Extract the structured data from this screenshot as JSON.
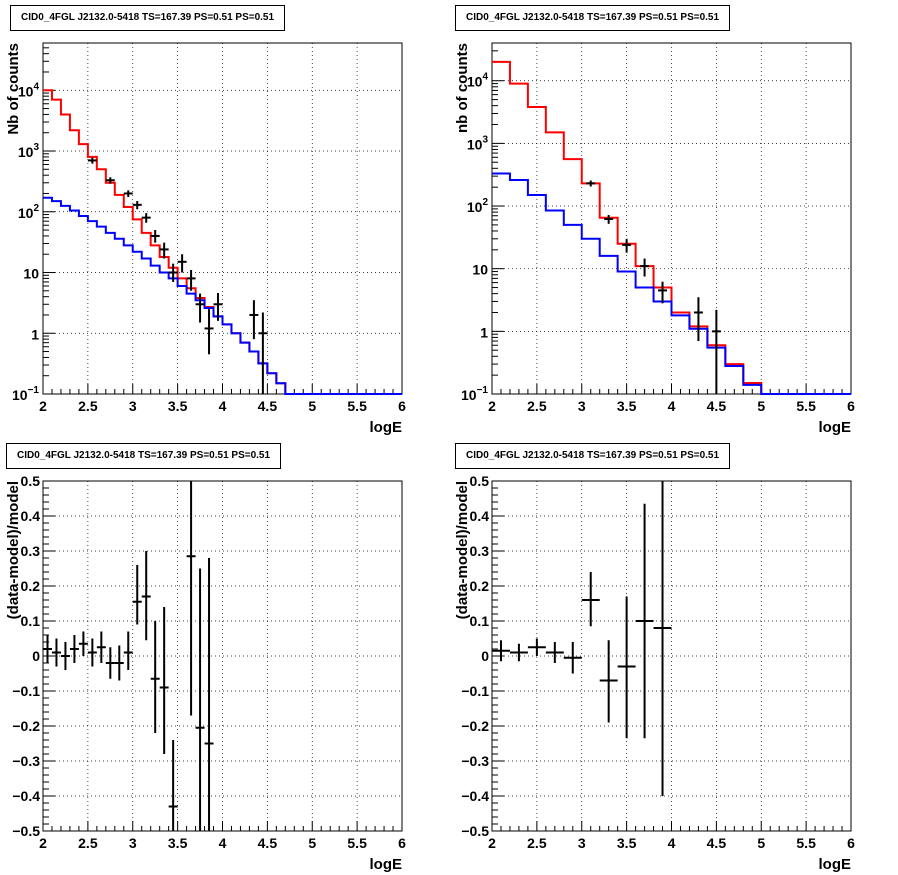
{
  "chart_data": [
    {
      "type": "line",
      "title": "CID0_4FGL J2132.0-5418 TS=167.39 PS=0.51 PS=0.51",
      "xlabel": "logE",
      "ylabel": "Nb of counts",
      "log_y": true,
      "xlim": [
        2,
        6
      ],
      "ylim": [
        0.1,
        60000
      ],
      "grid": true,
      "x_ticks": [
        "2",
        "2.5",
        "3",
        "3.5",
        "4",
        "4.5",
        "5",
        "5.5",
        "6"
      ],
      "y_ticks": [
        {
          "value": 0.1,
          "base": "10",
          "exp": "−1",
          "label": ""
        },
        {
          "value": 1,
          "base": "",
          "exp": "",
          "label": "1"
        },
        {
          "value": 10,
          "base": "",
          "exp": "",
          "label": "10"
        },
        {
          "value": 100,
          "base": "10",
          "exp": "2",
          "label": ""
        },
        {
          "value": 1000,
          "base": "10",
          "exp": "3",
          "label": ""
        },
        {
          "value": 10000,
          "base": "10",
          "exp": "4",
          "label": ""
        }
      ],
      "bin_edges": [
        2.0,
        2.1,
        2.2,
        2.3,
        2.4,
        2.5,
        2.6,
        2.7,
        2.8,
        2.9,
        3.0,
        3.1,
        3.2,
        3.3,
        3.4,
        3.5,
        3.6,
        3.7,
        3.8,
        3.9,
        4.0,
        4.1,
        4.2,
        4.3,
        4.4,
        4.5,
        4.6,
        4.7,
        4.8,
        4.9,
        5.0,
        5.1,
        5.2,
        5.3,
        5.4,
        5.5,
        5.6,
        5.7,
        5.8,
        5.9,
        6.0
      ],
      "series": [
        {
          "color": "#ff0000",
          "values": [
            10000,
            7000,
            4000,
            2200,
            1300,
            800,
            500,
            300,
            190,
            120,
            75,
            45,
            28,
            18,
            12,
            8,
            5.5,
            3.8,
            2.7,
            1.9,
            1.4,
            1.0,
            0.7,
            0.5,
            0.32,
            0.22,
            0.15,
            0.1,
            0.1,
            0.1,
            0.1,
            0.1,
            0.1,
            0.1,
            0.1,
            0.1,
            0.1,
            0.1,
            0.1,
            0.1
          ]
        },
        {
          "color": "#0000ff",
          "values": [
            170,
            150,
            125,
            105,
            85,
            70,
            57,
            45,
            36,
            28,
            22,
            17,
            13,
            10,
            8,
            6,
            4.5,
            3.5,
            2.6,
            1.9,
            1.4,
            1.0,
            0.7,
            0.5,
            0.32,
            0.22,
            0.15,
            0.1,
            0.1,
            0.1,
            0.1,
            0.1,
            0.1,
            0.1,
            0.1,
            0.1,
            0.1,
            0.1,
            0.1,
            0.1
          ]
        }
      ],
      "points": [
        {
          "x": 2.55,
          "y": 700,
          "ylo": 620,
          "yhi": 780
        },
        {
          "x": 2.75,
          "y": 330,
          "ylo": 290,
          "yhi": 370
        },
        {
          "x": 2.95,
          "y": 200,
          "ylo": 175,
          "yhi": 225
        },
        {
          "x": 3.05,
          "y": 130,
          "ylo": 110,
          "yhi": 150
        },
        {
          "x": 3.15,
          "y": 80,
          "ylo": 66,
          "yhi": 95
        },
        {
          "x": 3.25,
          "y": 40,
          "ylo": 31,
          "yhi": 50
        },
        {
          "x": 3.35,
          "y": 24,
          "ylo": 17,
          "yhi": 31
        },
        {
          "x": 3.45,
          "y": 10,
          "ylo": 7,
          "yhi": 14
        },
        {
          "x": 3.55,
          "y": 15,
          "ylo": 10,
          "yhi": 20
        },
        {
          "x": 3.65,
          "y": 8,
          "ylo": 5,
          "yhi": 11
        },
        {
          "x": 3.75,
          "y": 3,
          "ylo": 1.5,
          "yhi": 4.5
        },
        {
          "x": 3.85,
          "y": 1.2,
          "ylo": 0.45,
          "yhi": 2.5
        },
        {
          "x": 3.95,
          "y": 3,
          "ylo": 1.6,
          "yhi": 4.6
        },
        {
          "x": 4.35,
          "y": 2,
          "ylo": 0.8,
          "yhi": 3.5
        },
        {
          "x": 4.45,
          "y": 1,
          "ylo": 0.1,
          "yhi": 2.2
        }
      ]
    },
    {
      "type": "line",
      "title": "CID0_4FGL J2132.0-5418 TS=167.39 PS=0.51 PS=0.51",
      "xlabel": "logE",
      "ylabel": "nb of counts",
      "log_y": true,
      "xlim": [
        2,
        6
      ],
      "ylim": [
        0.1,
        40000
      ],
      "grid": true,
      "x_ticks": [
        "2",
        "2.5",
        "3",
        "3.5",
        "4",
        "4.5",
        "5",
        "5.5",
        "6"
      ],
      "y_ticks": [
        {
          "value": 0.1,
          "base": "10",
          "exp": "−1",
          "label": ""
        },
        {
          "value": 1,
          "base": "",
          "exp": "",
          "label": "1"
        },
        {
          "value": 10,
          "base": "",
          "exp": "",
          "label": "10"
        },
        {
          "value": 100,
          "base": "10",
          "exp": "2",
          "label": ""
        },
        {
          "value": 1000,
          "base": "10",
          "exp": "3",
          "label": ""
        },
        {
          "value": 10000,
          "base": "10",
          "exp": "4",
          "label": ""
        }
      ],
      "bin_edges": [
        2.0,
        2.2,
        2.4,
        2.6,
        2.8,
        3.0,
        3.2,
        3.4,
        3.6,
        3.8,
        4.0,
        4.2,
        4.4,
        4.6,
        4.8,
        5.0,
        5.2,
        5.4,
        5.6,
        5.8,
        6.0
      ],
      "series": [
        {
          "color": "#ff0000",
          "values": [
            20000,
            9000,
            3800,
            1500,
            560,
            230,
            65,
            25,
            11,
            5,
            2,
            1.2,
            0.6,
            0.3,
            0.15,
            0.1,
            0.1,
            0.1,
            0.1,
            0.1
          ]
        },
        {
          "color": "#0000ff",
          "values": [
            330,
            260,
            150,
            85,
            50,
            30,
            16,
            9,
            5,
            3,
            1.8,
            1.1,
            0.55,
            0.28,
            0.14,
            0.1,
            0.1,
            0.1,
            0.1,
            0.1
          ]
        }
      ],
      "points": [
        {
          "x": 3.1,
          "y": 230,
          "ylo": 205,
          "yhi": 255
        },
        {
          "x": 3.3,
          "y": 62,
          "ylo": 52,
          "yhi": 72
        },
        {
          "x": 3.5,
          "y": 24,
          "ylo": 18,
          "yhi": 30
        },
        {
          "x": 3.7,
          "y": 11,
          "ylo": 7.5,
          "yhi": 14.5
        },
        {
          "x": 3.9,
          "y": 4.5,
          "ylo": 2.8,
          "yhi": 6.2
        },
        {
          "x": 4.3,
          "y": 2,
          "ylo": 0.7,
          "yhi": 3.5
        },
        {
          "x": 4.5,
          "y": 1,
          "ylo": 0.1,
          "yhi": 2.2
        }
      ]
    },
    {
      "type": "scatter",
      "title": "CID0_4FGL J2132.0-5418 TS=167.39 PS=0.51 PS=0.51",
      "xlabel": "logE",
      "ylabel": "(data-model)/model",
      "log_y": false,
      "xlim": [
        2,
        6
      ],
      "ylim": [
        -0.5,
        0.5
      ],
      "grid": true,
      "x_ticks": [
        "2",
        "2.5",
        "3",
        "3.5",
        "4",
        "4.5",
        "5",
        "5.5",
        "6"
      ],
      "y_ticks": [
        {
          "value": -0.5,
          "label": "−0.5"
        },
        {
          "value": -0.4,
          "label": "−0.4"
        },
        {
          "value": -0.3,
          "label": "−0.3"
        },
        {
          "value": -0.2,
          "label": "−0.2"
        },
        {
          "value": -0.1,
          "label": "−0.1"
        },
        {
          "value": 0,
          "label": "0"
        },
        {
          "value": 0.1,
          "label": "0.1"
        },
        {
          "value": 0.2,
          "label": "0.2"
        },
        {
          "value": 0.3,
          "label": "0.3"
        },
        {
          "value": 0.4,
          "label": "0.4"
        },
        {
          "value": 0.5,
          "label": "0.5"
        }
      ],
      "bin_width": 0.1,
      "points": [
        {
          "x": 2.05,
          "y": 0.02,
          "ylo": -0.02,
          "yhi": 0.06
        },
        {
          "x": 2.15,
          "y": 0.01,
          "ylo": -0.03,
          "yhi": 0.05
        },
        {
          "x": 2.25,
          "y": 0.0,
          "ylo": -0.04,
          "yhi": 0.04
        },
        {
          "x": 2.35,
          "y": 0.02,
          "ylo": -0.02,
          "yhi": 0.06
        },
        {
          "x": 2.45,
          "y": 0.035,
          "ylo": 0.0,
          "yhi": 0.07
        },
        {
          "x": 2.55,
          "y": 0.01,
          "ylo": -0.03,
          "yhi": 0.05
        },
        {
          "x": 2.65,
          "y": 0.025,
          "ylo": -0.02,
          "yhi": 0.07
        },
        {
          "x": 2.75,
          "y": -0.02,
          "ylo": -0.065,
          "yhi": 0.025
        },
        {
          "x": 2.85,
          "y": -0.02,
          "ylo": -0.07,
          "yhi": 0.03
        },
        {
          "x": 2.95,
          "y": 0.01,
          "ylo": -0.04,
          "yhi": 0.07
        },
        {
          "x": 3.05,
          "y": 0.155,
          "ylo": 0.09,
          "yhi": 0.26
        },
        {
          "x": 3.15,
          "y": 0.17,
          "ylo": 0.045,
          "yhi": 0.3
        },
        {
          "x": 3.25,
          "y": -0.065,
          "ylo": -0.22,
          "yhi": 0.1
        },
        {
          "x": 3.35,
          "y": -0.09,
          "ylo": -0.28,
          "yhi": 0.14
        },
        {
          "x": 3.45,
          "y": -0.43,
          "ylo": -0.5,
          "yhi": -0.24
        },
        {
          "x": 3.65,
          "y": 0.285,
          "ylo": -0.17,
          "yhi": 0.5
        },
        {
          "x": 3.75,
          "y": -0.205,
          "ylo": -0.5,
          "yhi": 0.25
        },
        {
          "x": 3.85,
          "y": -0.25,
          "ylo": -0.5,
          "yhi": 0.28
        }
      ]
    },
    {
      "type": "scatter",
      "title": "CID0_4FGL J2132.0-5418 TS=167.39 PS=0.51 PS=0.51",
      "xlabel": "logE",
      "ylabel": "(data-model)/model",
      "log_y": false,
      "xlim": [
        2,
        6
      ],
      "ylim": [
        -0.5,
        0.5
      ],
      "grid": true,
      "x_ticks": [
        "2",
        "2.5",
        "3",
        "3.5",
        "4",
        "4.5",
        "5",
        "5.5",
        "6"
      ],
      "y_ticks": [
        {
          "value": -0.5,
          "label": "−0.5"
        },
        {
          "value": -0.4,
          "label": "−0.4"
        },
        {
          "value": -0.3,
          "label": "−0.3"
        },
        {
          "value": -0.2,
          "label": "−0.2"
        },
        {
          "value": -0.1,
          "label": "−0.1"
        },
        {
          "value": 0,
          "label": "0"
        },
        {
          "value": 0.1,
          "label": "0.1"
        },
        {
          "value": 0.2,
          "label": "0.2"
        },
        {
          "value": 0.3,
          "label": "0.3"
        },
        {
          "value": 0.4,
          "label": "0.4"
        },
        {
          "value": 0.5,
          "label": "0.5"
        }
      ],
      "bin_width": 0.2,
      "points": [
        {
          "x": 2.1,
          "y": 0.015,
          "ylo": -0.015,
          "yhi": 0.045
        },
        {
          "x": 2.3,
          "y": 0.01,
          "ylo": -0.015,
          "yhi": 0.035
        },
        {
          "x": 2.5,
          "y": 0.025,
          "ylo": 0.0,
          "yhi": 0.05
        },
        {
          "x": 2.7,
          "y": 0.01,
          "ylo": -0.02,
          "yhi": 0.04
        },
        {
          "x": 2.9,
          "y": -0.005,
          "ylo": -0.05,
          "yhi": 0.04
        },
        {
          "x": 3.1,
          "y": 0.16,
          "ylo": 0.085,
          "yhi": 0.24
        },
        {
          "x": 3.3,
          "y": -0.07,
          "ylo": -0.19,
          "yhi": 0.045
        },
        {
          "x": 3.5,
          "y": -0.03,
          "ylo": -0.235,
          "yhi": 0.17
        },
        {
          "x": 3.7,
          "y": 0.1,
          "ylo": -0.235,
          "yhi": 0.435
        },
        {
          "x": 3.9,
          "y": 0.08,
          "ylo": -0.4,
          "yhi": 0.5
        }
      ]
    }
  ]
}
